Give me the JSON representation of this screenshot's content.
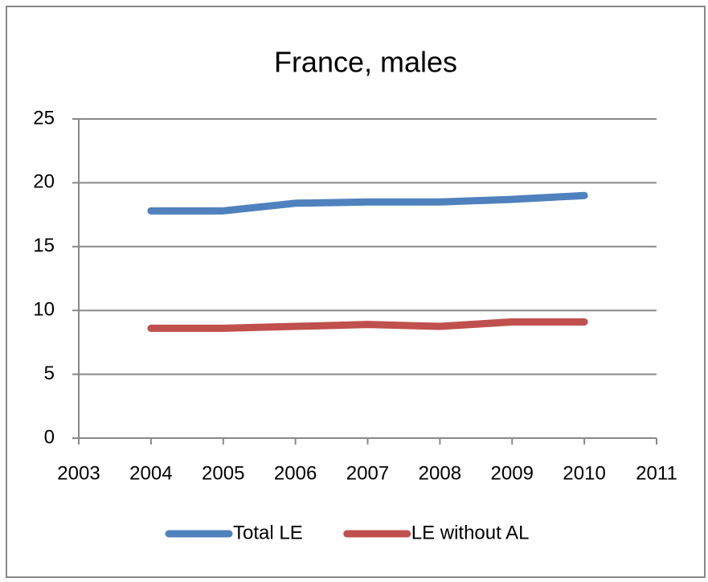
{
  "chart_data": {
    "type": "line",
    "title": "France, males",
    "x": [
      2004,
      2005,
      2006,
      2007,
      2008,
      2009,
      2010
    ],
    "series": [
      {
        "name": "Total LE",
        "color": "#4f81bd",
        "values": [
          17.8,
          17.8,
          18.4,
          18.5,
          18.5,
          18.7,
          19.0
        ]
      },
      {
        "name": "LE without AL",
        "color": "#c0504d",
        "values": [
          8.6,
          8.6,
          8.75,
          8.9,
          8.75,
          9.1,
          9.1
        ]
      }
    ],
    "xlim": [
      2003,
      2011
    ],
    "xticks": [
      2003,
      2004,
      2005,
      2006,
      2007,
      2008,
      2009,
      2010,
      2011
    ],
    "ylim": [
      0,
      25
    ],
    "yticks": [
      0,
      5,
      10,
      15,
      20,
      25
    ],
    "grid": true,
    "legend": "bottom"
  }
}
